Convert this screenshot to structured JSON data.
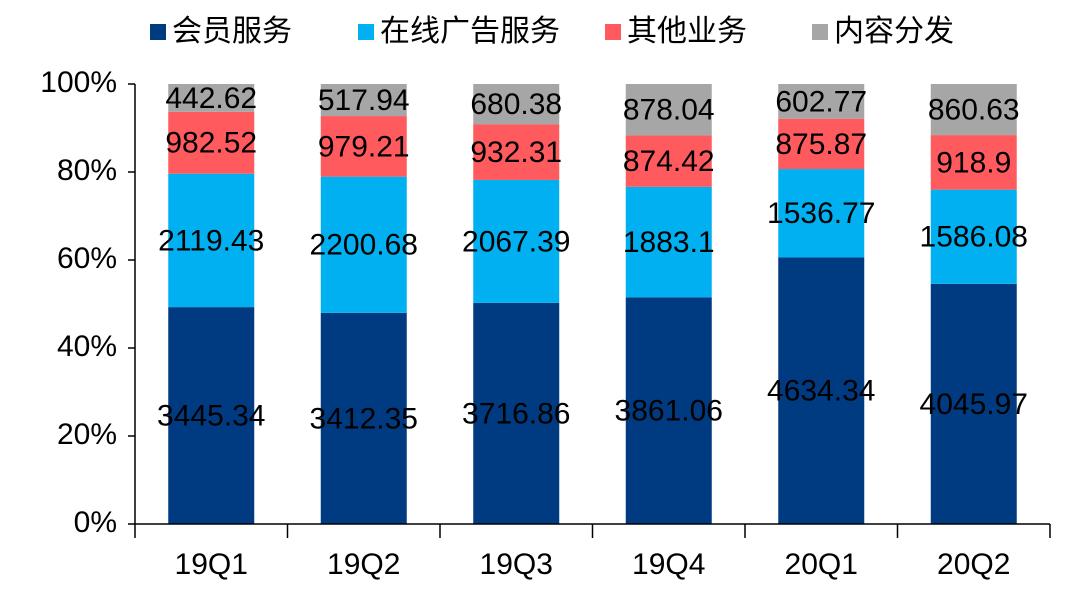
{
  "chart_data": {
    "type": "bar",
    "stacked": "percent",
    "categories": [
      "19Q1",
      "19Q2",
      "19Q3",
      "19Q4",
      "20Q1",
      "20Q2"
    ],
    "series": [
      {
        "name": "会员服务",
        "color": "#003a80",
        "values": [
          3445.34,
          3412.35,
          3716.86,
          3861.06,
          4634.34,
          4045.97
        ]
      },
      {
        "name": "在线广告服务",
        "color": "#00b0f0",
        "values": [
          2119.43,
          2200.68,
          2067.39,
          1883.1,
          1536.77,
          1586.08
        ]
      },
      {
        "name": "其他业务",
        "color": "#ff5b5f",
        "values": [
          982.52,
          979.21,
          932.31,
          874.42,
          875.87,
          918.9
        ]
      },
      {
        "name": "内容分发",
        "color": "#a6a6a6",
        "values": [
          442.62,
          517.94,
          680.38,
          878.04,
          602.77,
          860.63
        ]
      }
    ],
    "ylim": [
      0,
      100
    ],
    "yticks": [
      {
        "value": 0,
        "label": "0%"
      },
      {
        "value": 20,
        "label": "20%"
      },
      {
        "value": 40,
        "label": "40%"
      },
      {
        "value": 60,
        "label": "60%"
      },
      {
        "value": 80,
        "label": "80%"
      },
      {
        "value": 100,
        "label": "100%"
      }
    ],
    "legend": "top",
    "grid": false
  }
}
